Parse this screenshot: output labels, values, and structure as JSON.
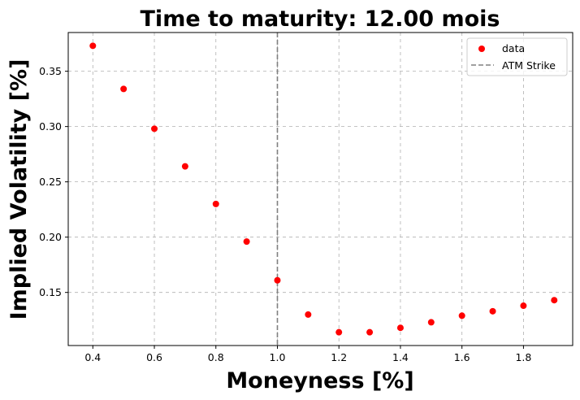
{
  "chart_data": {
    "type": "scatter",
    "title": "Time to maturity: 12.00 mois",
    "xlabel": "Moneyness [%]",
    "ylabel": "Implied Volatility [%]",
    "xlim": [
      0.32,
      1.96
    ],
    "ylim": [
      0.102,
      0.385
    ],
    "xticks": [
      0.4,
      0.6,
      0.8,
      1.0,
      1.2,
      1.4,
      1.6,
      1.8
    ],
    "xtick_labels": [
      "0.4",
      "0.6",
      "0.8",
      "1.0",
      "1.2",
      "1.4",
      "1.6",
      "1.8"
    ],
    "yticks": [
      0.15,
      0.2,
      0.25,
      0.3,
      0.35
    ],
    "ytick_labels": [
      "0.15",
      "0.20",
      "0.25",
      "0.30",
      "0.35"
    ],
    "grid": true,
    "legend_position": "top-right",
    "series": [
      {
        "name": "data",
        "color": "#ff0000",
        "x": [
          0.4,
          0.5,
          0.6,
          0.7,
          0.8,
          0.9,
          1.0,
          1.1,
          1.2,
          1.3,
          1.4,
          1.5,
          1.6,
          1.7,
          1.8,
          1.9
        ],
        "y": [
          0.373,
          0.334,
          0.298,
          0.264,
          0.23,
          0.196,
          0.161,
          0.13,
          0.114,
          0.114,
          0.118,
          0.123,
          0.129,
          0.133,
          0.138,
          0.143
        ]
      }
    ],
    "vlines": [
      {
        "name": "ATM Strike",
        "x": 1.0,
        "color": "#808080",
        "style": "dashed"
      }
    ]
  }
}
